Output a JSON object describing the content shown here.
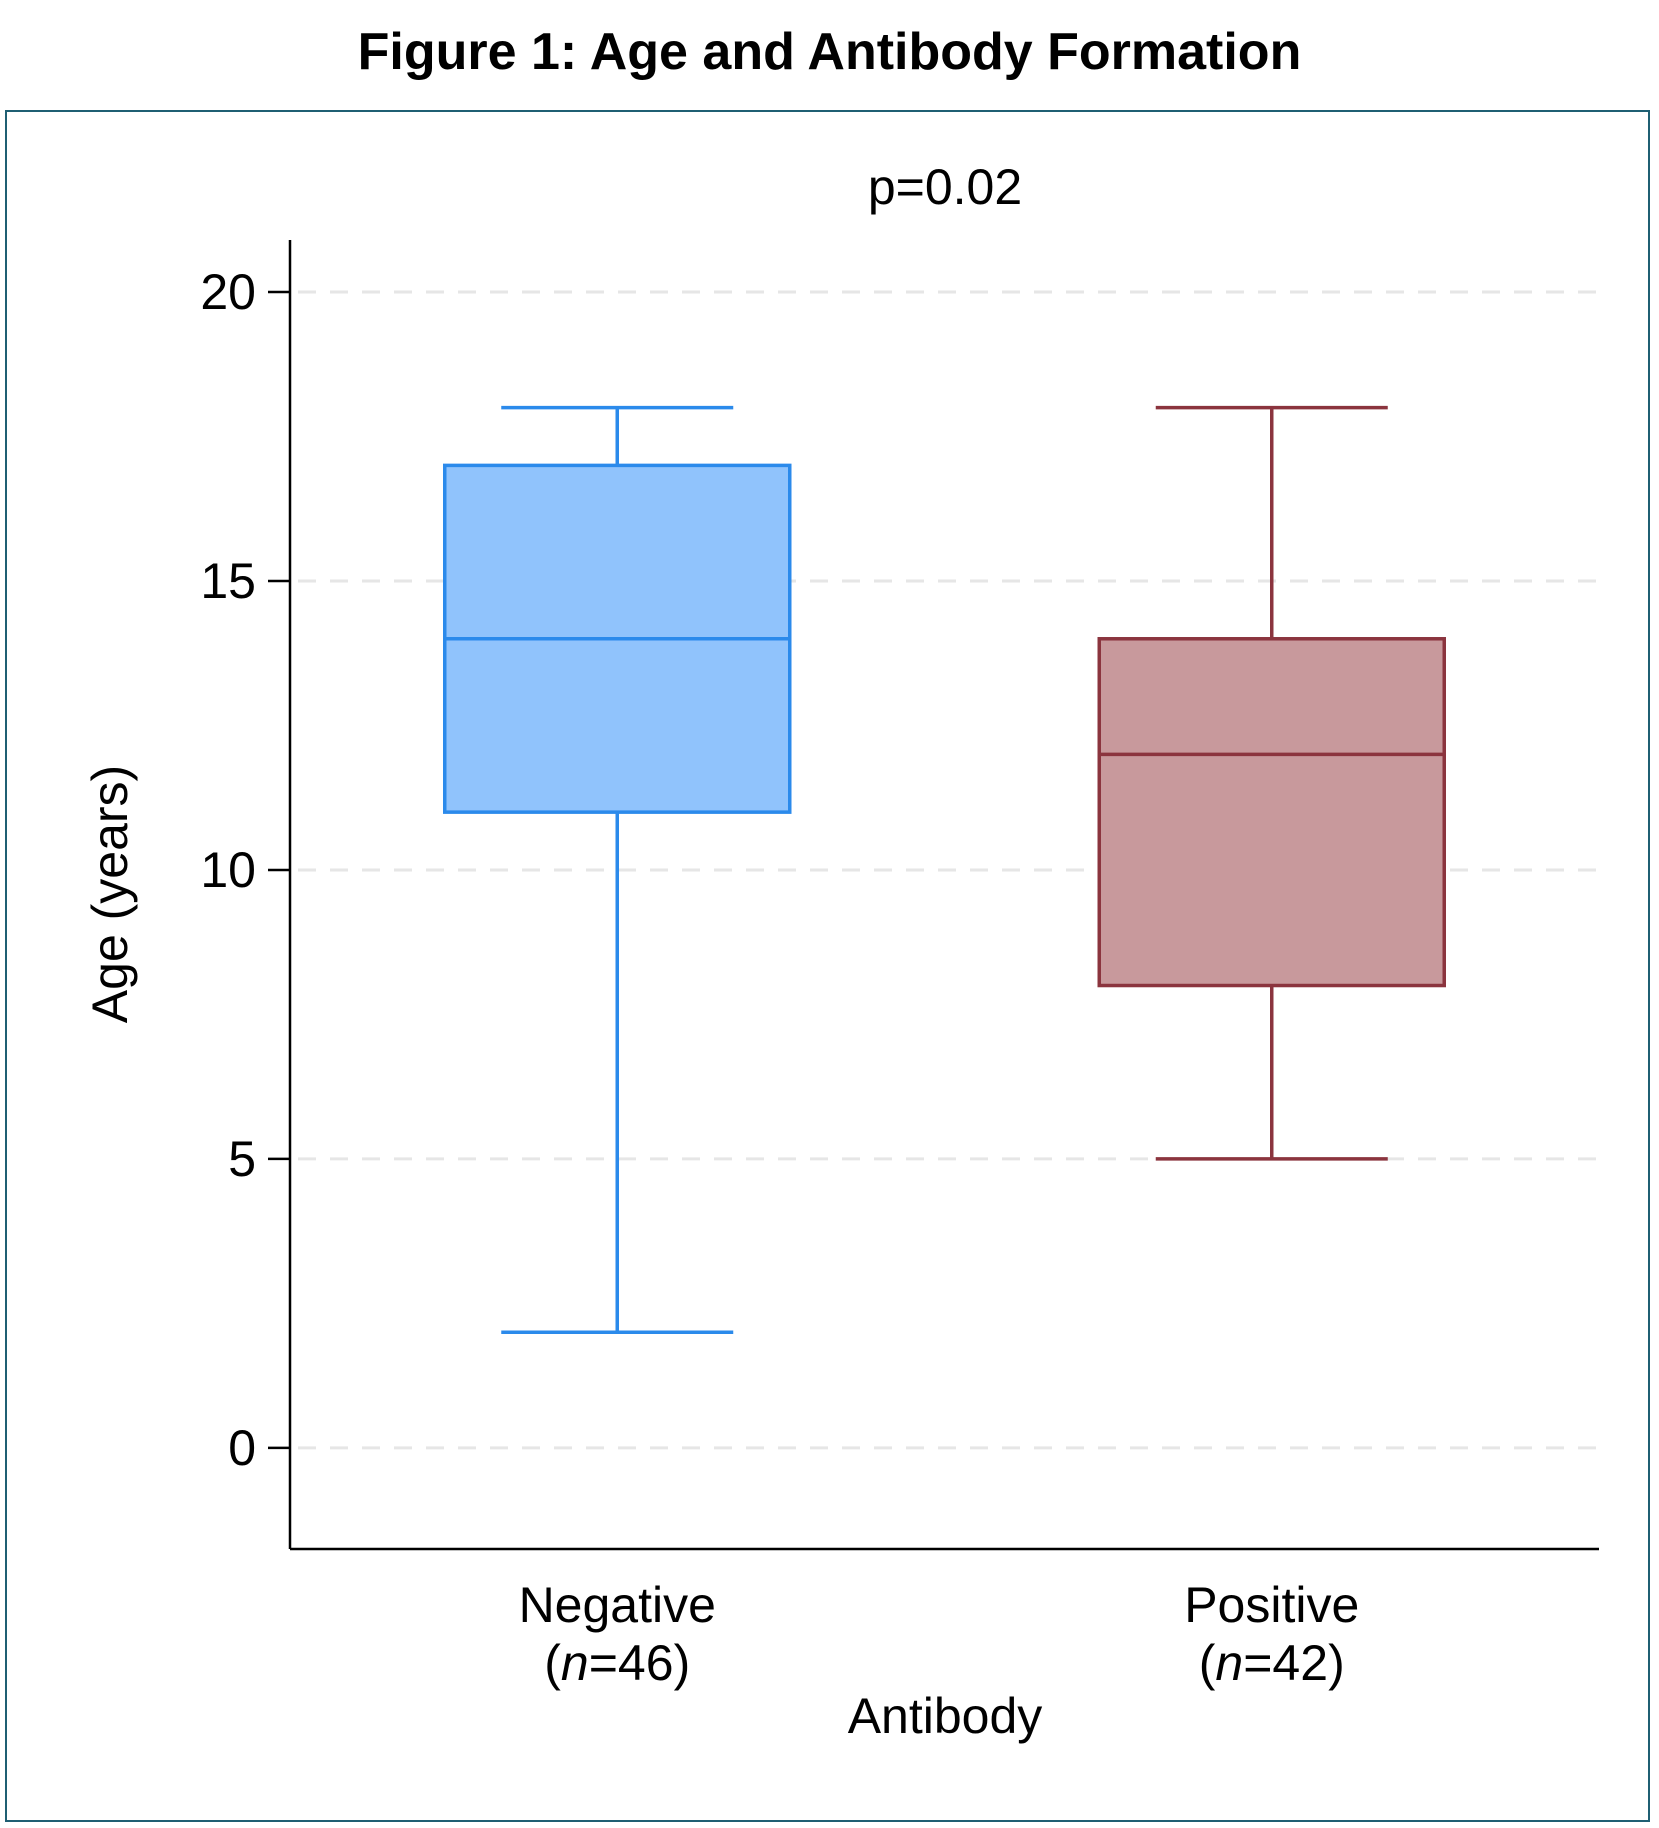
{
  "figure_title": "Figure 1: Age and Antibody Formation",
  "chart_data": {
    "type": "box",
    "subtitle": "p=0.02",
    "xlabel": "Antibody",
    "ylabel": "Age (years)",
    "ylim": [
      -1.75,
      20.9
    ],
    "yticks": [
      0,
      5,
      10,
      15,
      20
    ],
    "grid": true,
    "groups": [
      {
        "name": "Negative",
        "n_label": "n",
        "n_value": "=46",
        "n_open": "(",
        "n_close": ")",
        "min": 2,
        "q1": 11,
        "median": 14,
        "q3": 17,
        "max": 18,
        "fill": "#90c3fc",
        "stroke": "#2b8aeb"
      },
      {
        "name": "Positive",
        "n_label": "n",
        "n_value": "=42",
        "n_open": "(",
        "n_close": ")",
        "min": 5,
        "q1": 8,
        "median": 12,
        "q3": 14,
        "max": 18,
        "fill": "#c8999c",
        "stroke": "#8b343e"
      }
    ]
  }
}
